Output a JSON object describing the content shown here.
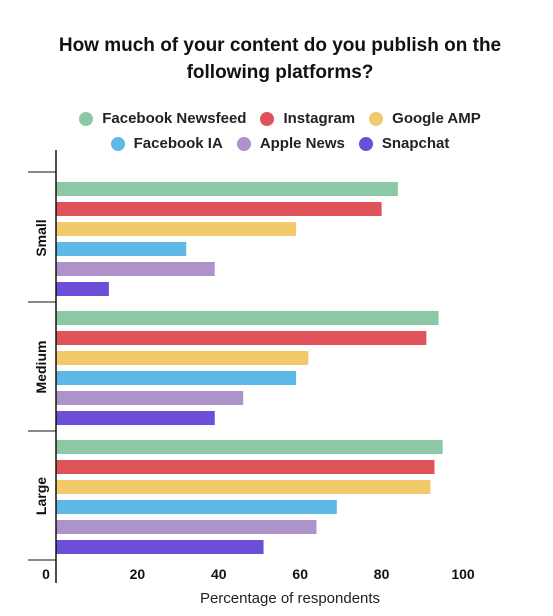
{
  "chart_data": {
    "type": "bar",
    "orientation": "horizontal",
    "title": "How much of your content do you publish on the following platforms?",
    "xlabel": "Percentage of respondents",
    "ylabel": "",
    "xlim": [
      0,
      100
    ],
    "x_ticks": [
      0,
      20,
      40,
      60,
      80,
      100
    ],
    "grid": false,
    "legend_position": "top",
    "categories": [
      "Small",
      "Medium",
      "Large"
    ],
    "series": [
      {
        "name": "Facebook Newsfeed",
        "color": "#8cc8a5",
        "values": [
          84,
          94,
          95
        ]
      },
      {
        "name": "Instagram",
        "color": "#e0525a",
        "values": [
          80,
          91,
          93
        ]
      },
      {
        "name": "Google AMP",
        "color": "#f2ca6b",
        "values": [
          59,
          62,
          92
        ]
      },
      {
        "name": "Facebook IA",
        "color": "#5db8e6",
        "values": [
          32,
          59,
          69
        ]
      },
      {
        "name": "Apple News",
        "color": "#ad93c9",
        "values": [
          39,
          46,
          64
        ]
      },
      {
        "name": "Snapchat",
        "color": "#6b4fd9",
        "values": [
          13,
          39,
          51
        ]
      }
    ]
  }
}
